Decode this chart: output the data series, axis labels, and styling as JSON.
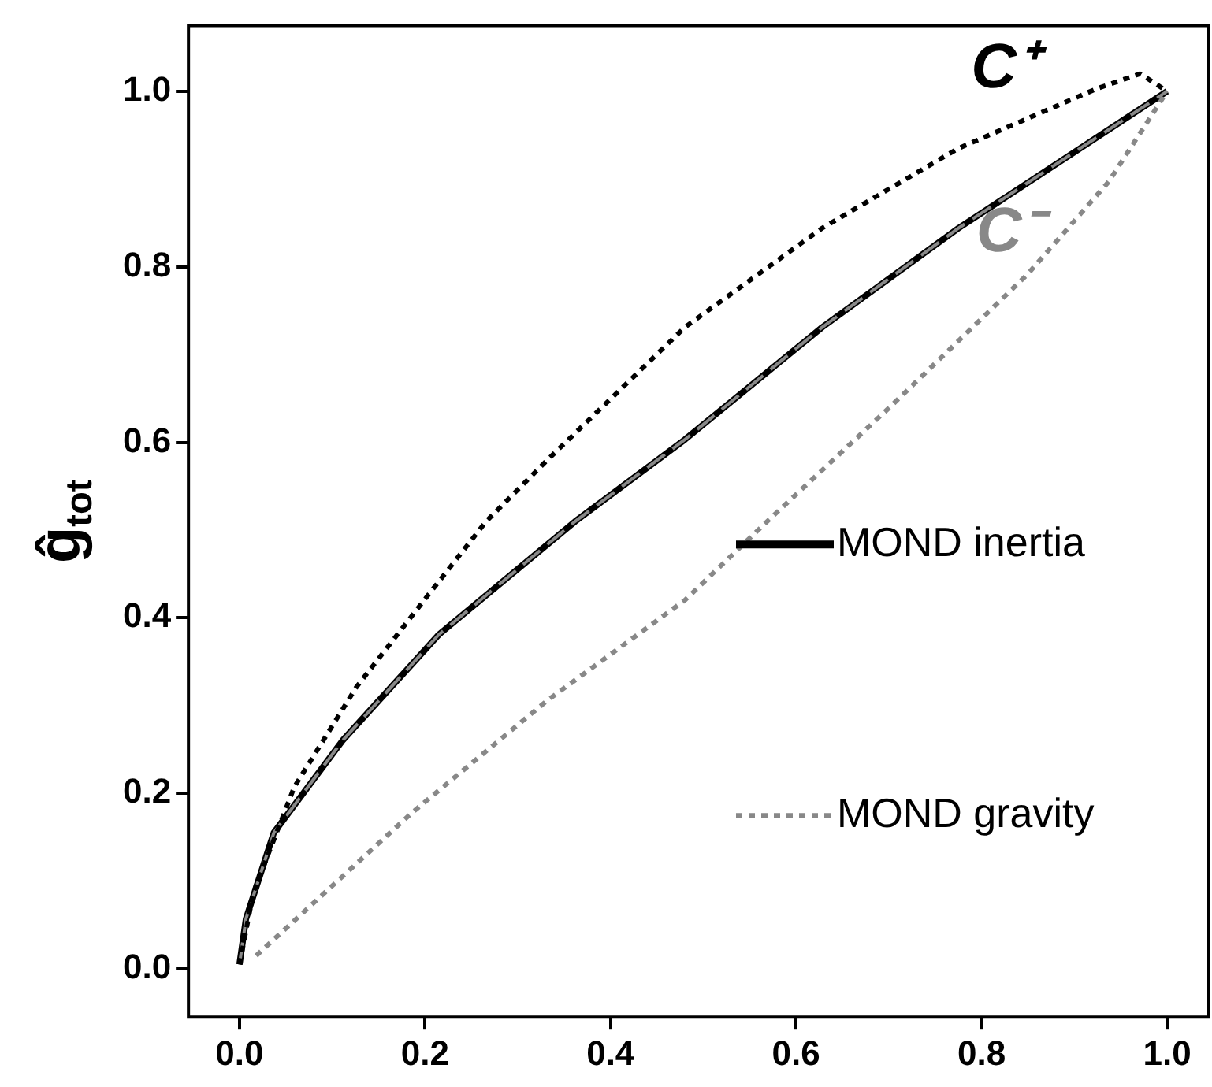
{
  "chart_data": {
    "type": "line",
    "ylabel": "ĝ$_{tot}$",
    "xlim": [
      -0.055,
      1.045
    ],
    "ylim": [
      -0.055,
      1.075
    ],
    "xticks": [
      {
        "value": 0,
        "label": "0.0"
      },
      {
        "value": 0.2,
        "label": "0.2"
      },
      {
        "value": 0.4,
        "label": "0.4"
      },
      {
        "value": 0.6,
        "label": "0.6"
      },
      {
        "value": 0.8,
        "label": "0.8"
      },
      {
        "value": 1,
        "label": "1.0"
      }
    ],
    "yticks": [
      {
        "value": 0,
        "label": "0.0"
      },
      {
        "value": 0.2,
        "label": "0.2"
      },
      {
        "value": 0.4,
        "label": "0.4"
      },
      {
        "value": 0.6,
        "label": "0.6"
      },
      {
        "value": 0.8,
        "label": "0.8"
      },
      {
        "value": 1,
        "label": "1.0"
      }
    ],
    "grid": false,
    "legend": "right",
    "series": [
      {
        "name": "MOND inertia",
        "color": "#000000",
        "line_style": "solid",
        "x": [
          0,
          0.007,
          0.037,
          0.111,
          0.215,
          0.362,
          0.48,
          0.628,
          0.775,
          1.0
        ],
        "values": [
          0.005,
          0.057,
          0.155,
          0.26,
          0.381,
          0.51,
          0.603,
          0.731,
          0.844,
          1.0
        ]
      },
      {
        "color": "#888888",
        "line_style": "dashed",
        "x": [
          0,
          0.007,
          0.037,
          0.111,
          0.215,
          0.362,
          0.48,
          0.628,
          0.775,
          1.0
        ],
        "values": [
          0.005,
          0.057,
          0.155,
          0.26,
          0.381,
          0.51,
          0.603,
          0.731,
          0.844,
          1.0
        ]
      },
      {
        "color": "#000000",
        "line_style": "dotted",
        "x": [
          0,
          0.015,
          0.059,
          0.126,
          0.199,
          0.266,
          0.332,
          0.48,
          0.628,
          0.775,
          0.924,
          0.971,
          1.0
        ],
        "values": [
          0.005,
          0.087,
          0.207,
          0.321,
          0.42,
          0.51,
          0.58,
          0.731,
          0.844,
          0.935,
          1.003,
          1.02,
          1.0
        ]
      },
      {
        "name": "MOND gravity",
        "color": "#888888",
        "line_style": "dotted",
        "x": [
          0.018,
          0.185,
          0.332,
          0.48,
          0.569,
          0.702,
          0.85,
          0.937,
          1.0
        ],
        "values": [
          0.015,
          0.177,
          0.306,
          0.42,
          0.51,
          0.641,
          0.792,
          0.897,
          1.0
        ]
      }
    ],
    "annotations": [
      "C⁺",
      "C⁻"
    ]
  }
}
